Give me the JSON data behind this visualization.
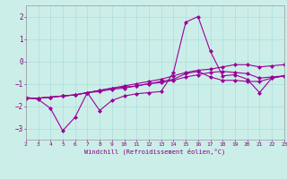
{
  "x": [
    2,
    3,
    4,
    5,
    6,
    7,
    8,
    9,
    10,
    11,
    12,
    13,
    14,
    15,
    16,
    17,
    18,
    19,
    20,
    21,
    22,
    23
  ],
  "line1": [
    -1.6,
    -1.7,
    -2.1,
    -3.1,
    -2.5,
    -1.4,
    -2.2,
    -1.75,
    -1.55,
    -1.45,
    -1.4,
    -1.35,
    -0.5,
    1.75,
    2.0,
    0.45,
    -0.65,
    -0.6,
    -0.8,
    -1.4,
    -0.75,
    -0.65
  ],
  "line2": [
    -1.65,
    -1.65,
    -1.6,
    -1.55,
    -1.5,
    -1.4,
    -1.35,
    -1.25,
    -1.2,
    -1.1,
    -1.0,
    -0.95,
    -0.85,
    -0.7,
    -0.6,
    -0.5,
    -0.45,
    -0.5,
    -0.55,
    -0.75,
    -0.7,
    -0.65
  ],
  "line3": [
    -1.65,
    -1.65,
    -1.6,
    -1.55,
    -1.5,
    -1.4,
    -1.3,
    -1.2,
    -1.15,
    -1.1,
    -1.0,
    -0.9,
    -0.8,
    -0.55,
    -0.45,
    -0.7,
    -0.85,
    -0.85,
    -0.9,
    -0.9,
    -0.75,
    -0.65
  ],
  "line4": [
    -1.65,
    -1.65,
    -1.6,
    -1.55,
    -1.5,
    -1.4,
    -1.3,
    -1.2,
    -1.1,
    -1.0,
    -0.9,
    -0.8,
    -0.65,
    -0.5,
    -0.4,
    -0.35,
    -0.25,
    -0.15,
    -0.15,
    -0.25,
    -0.2,
    -0.15
  ],
  "line_color": "#990099",
  "bg_color": "#cceee8",
  "grid_color": "#aadddd",
  "xlabel": "Windchill (Refroidissement éolien,°C)",
  "xlabel_color": "#800080",
  "ylabel_color": "#800080",
  "tick_color": "#800080",
  "ylim": [
    -3.5,
    2.5
  ],
  "xlim": [
    2,
    23
  ],
  "yticks": [
    -3,
    -2,
    -1,
    0,
    1,
    2
  ],
  "xticks": [
    2,
    3,
    4,
    5,
    6,
    7,
    8,
    9,
    10,
    11,
    12,
    13,
    14,
    15,
    16,
    17,
    18,
    19,
    20,
    21,
    22,
    23
  ]
}
